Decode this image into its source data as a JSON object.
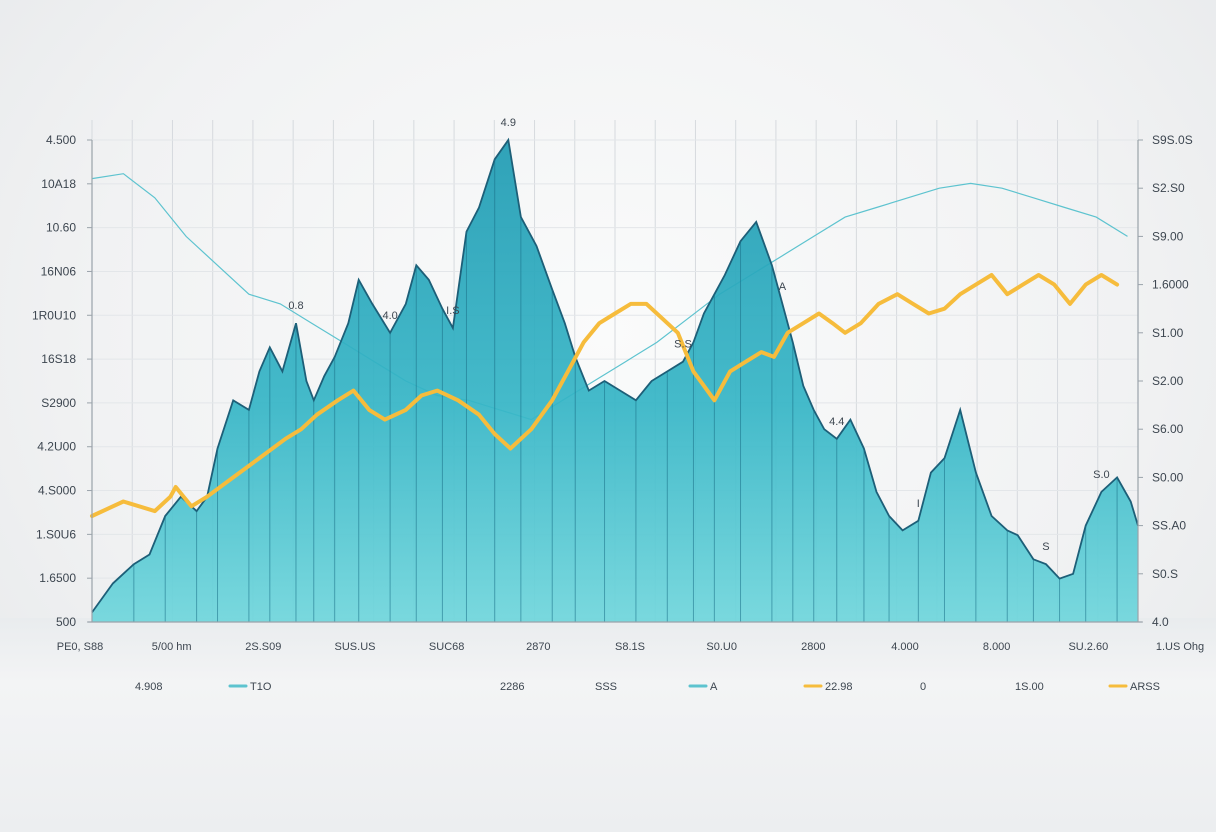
{
  "chart_data": {
    "type": "area",
    "title": "",
    "xlabel": "",
    "ylabel": "",
    "grid": true,
    "legend_position": "bottom",
    "colors": {
      "area_fill": "#35b5c6",
      "area_edge": "#1d5f78",
      "thin_line": "#5dc3cf",
      "yellow_line": "#f6bc3c",
      "grid": "#d6dade",
      "axis": "#9aa3aa",
      "text": "#3d4650"
    },
    "y_left_ticks": [
      "4.500",
      "10A18",
      "10.60",
      "16N06",
      "1R0U10",
      "16S18",
      "S2900",
      "4.2U00",
      "4.S000",
      "1.S0U6",
      "1.6500",
      "500"
    ],
    "y_right_ticks": [
      "S9S.0S",
      "S2.S0",
      "S9.00",
      "1.6000",
      "S1.00",
      "S2.00",
      "S6.00",
      "S0.00",
      "SS.A0",
      "S0.S",
      "4.0"
    ],
    "x_ticks": [
      "PE0, S88",
      "5/00 hm",
      "2S.S09",
      "SUS.US",
      "SUC68",
      "2870",
      "S8.1S",
      "S0.U0",
      "2800",
      "4.000",
      "8.000",
      "SU.2.60",
      "1.US Ohg"
    ],
    "legend": [
      {
        "text": "4.908",
        "marker": "none"
      },
      {
        "text": "T1O",
        "marker": "teal"
      },
      {
        "text": "2286",
        "marker": "none"
      },
      {
        "text": "SSS",
        "marker": "none"
      },
      {
        "text": "A",
        "marker": "teal"
      },
      {
        "text": "22.98",
        "marker": "yellow"
      },
      {
        "text": "0",
        "marker": "none"
      },
      {
        "text": "1S.00",
        "marker": "none"
      },
      {
        "text": "ARSS",
        "marker": "yellow"
      }
    ],
    "point_labels": [
      "0.8",
      "4.0",
      "I.S",
      "4.9",
      "S.S",
      "A",
      "4.4",
      "I",
      "S",
      "S.0"
    ],
    "series": [
      {
        "kind": "area",
        "x": [
          0,
          0.02,
          0.04,
          0.055,
          0.07,
          0.085,
          0.1,
          0.11,
          0.12,
          0.135,
          0.15,
          0.16,
          0.17,
          0.182,
          0.195,
          0.205,
          0.212,
          0.222,
          0.232,
          0.245,
          0.255,
          0.268,
          0.285,
          0.3,
          0.31,
          0.322,
          0.335,
          0.345,
          0.358,
          0.37,
          0.385,
          0.398,
          0.41,
          0.425,
          0.44,
          0.452,
          0.462,
          0.475,
          0.49,
          0.505,
          0.52,
          0.535,
          0.55,
          0.565,
          0.575,
          0.585,
          0.595,
          0.605,
          0.62,
          0.635,
          0.65,
          0.66,
          0.67,
          0.68,
          0.69,
          0.7,
          0.712,
          0.725,
          0.738,
          0.75,
          0.762,
          0.775,
          0.79,
          0.802,
          0.815,
          0.83,
          0.845,
          0.86,
          0.875,
          0.885,
          0.9,
          0.912,
          0.925,
          0.938,
          0.95,
          0.965,
          0.98,
          0.993,
          1.0
        ],
        "y": [
          0.02,
          0.08,
          0.12,
          0.14,
          0.22,
          0.26,
          0.23,
          0.26,
          0.36,
          0.46,
          0.44,
          0.52,
          0.57,
          0.52,
          0.62,
          0.5,
          0.46,
          0.51,
          0.55,
          0.62,
          0.71,
          0.66,
          0.6,
          0.66,
          0.74,
          0.71,
          0.65,
          0.61,
          0.81,
          0.86,
          0.96,
          1.0,
          0.84,
          0.78,
          0.69,
          0.62,
          0.55,
          0.48,
          0.5,
          0.48,
          0.46,
          0.5,
          0.52,
          0.54,
          0.58,
          0.64,
          0.68,
          0.72,
          0.79,
          0.83,
          0.74,
          0.66,
          0.58,
          0.49,
          0.44,
          0.4,
          0.38,
          0.42,
          0.36,
          0.27,
          0.22,
          0.19,
          0.21,
          0.31,
          0.34,
          0.44,
          0.31,
          0.22,
          0.19,
          0.18,
          0.13,
          0.12,
          0.09,
          0.1,
          0.2,
          0.27,
          0.3,
          0.25,
          0.2
        ]
      },
      {
        "kind": "line",
        "color": "yellow",
        "x": [
          0.0,
          0.03,
          0.06,
          0.075,
          0.08,
          0.095,
          0.11,
          0.135,
          0.16,
          0.185,
          0.2,
          0.215,
          0.235,
          0.25,
          0.265,
          0.28,
          0.3,
          0.315,
          0.33,
          0.35,
          0.37,
          0.385,
          0.4,
          0.42,
          0.44,
          0.455,
          0.47,
          0.485,
          0.5,
          0.515,
          0.53,
          0.545,
          0.56,
          0.575,
          0.585,
          0.595,
          0.61,
          0.625,
          0.64,
          0.652,
          0.665,
          0.68,
          0.695,
          0.708,
          0.72,
          0.735,
          0.752,
          0.77,
          0.785,
          0.8,
          0.815,
          0.83,
          0.845,
          0.86,
          0.875,
          0.89,
          0.905,
          0.92,
          0.935,
          0.95,
          0.965,
          0.98
        ],
        "y": [
          0.22,
          0.25,
          0.23,
          0.26,
          0.28,
          0.24,
          0.26,
          0.3,
          0.34,
          0.38,
          0.4,
          0.43,
          0.46,
          0.48,
          0.44,
          0.42,
          0.44,
          0.47,
          0.48,
          0.46,
          0.43,
          0.39,
          0.36,
          0.4,
          0.46,
          0.52,
          0.58,
          0.62,
          0.64,
          0.66,
          0.66,
          0.63,
          0.6,
          0.52,
          0.49,
          0.46,
          0.52,
          0.54,
          0.56,
          0.55,
          0.6,
          0.62,
          0.64,
          0.62,
          0.6,
          0.62,
          0.66,
          0.68,
          0.66,
          0.64,
          0.65,
          0.68,
          0.7,
          0.72,
          0.68,
          0.7,
          0.72,
          0.7,
          0.66,
          0.7,
          0.72,
          0.7
        ]
      },
      {
        "kind": "line",
        "color": "teal-thin",
        "x": [
          0.0,
          0.03,
          0.06,
          0.09,
          0.12,
          0.15,
          0.18,
          0.21,
          0.24,
          0.27,
          0.3,
          0.33,
          0.36,
          0.39,
          0.42,
          0.45,
          0.48,
          0.51,
          0.54,
          0.57,
          0.6,
          0.63,
          0.66,
          0.69,
          0.72,
          0.75,
          0.78,
          0.81,
          0.84,
          0.87,
          0.9,
          0.93,
          0.96,
          0.99
        ],
        "y": [
          0.92,
          0.93,
          0.88,
          0.8,
          0.74,
          0.68,
          0.66,
          0.62,
          0.58,
          0.54,
          0.5,
          0.47,
          0.46,
          0.44,
          0.42,
          0.46,
          0.5,
          0.54,
          0.58,
          0.63,
          0.68,
          0.72,
          0.76,
          0.8,
          0.84,
          0.86,
          0.88,
          0.9,
          0.91,
          0.9,
          0.88,
          0.86,
          0.84,
          0.8
        ]
      }
    ]
  }
}
